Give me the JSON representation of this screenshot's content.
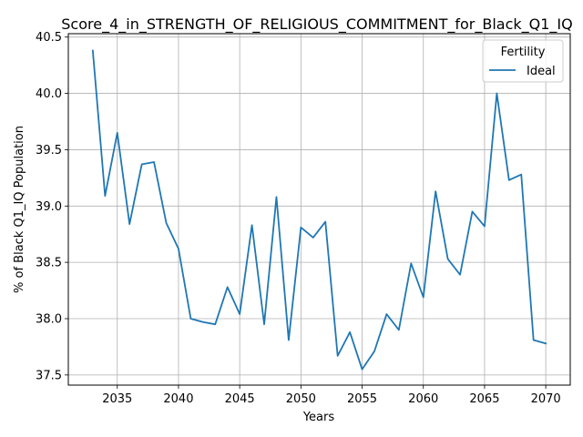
{
  "chart_data": {
    "type": "line",
    "title": "Score_4_in_STRENGTH_OF_RELIGIOUS_COMMITMENT_for_Black_Q1_IQ",
    "xlabel": "Years",
    "ylabel": "% of Black Q1_IQ Population",
    "xlim": [
      2031,
      2072
    ],
    "ylim": [
      37.41,
      40.53
    ],
    "xticks": [
      2035,
      2040,
      2045,
      2050,
      2055,
      2060,
      2065,
      2070
    ],
    "yticks": [
      37.5,
      38.0,
      38.5,
      39.0,
      39.5,
      40.0,
      40.5
    ],
    "xtick_labels": [
      "2035",
      "2040",
      "2045",
      "2050",
      "2055",
      "2060",
      "2065",
      "2070"
    ],
    "ytick_labels": [
      "37.5",
      "38.0",
      "38.5",
      "39.0",
      "39.5",
      "40.0",
      "40.5"
    ],
    "grid": true,
    "legend": {
      "title": "Fertility",
      "position": "upper right"
    },
    "series": [
      {
        "name": "Ideal",
        "color": "#1f77b4",
        "x": [
          2033,
          2034,
          2035,
          2036,
          2037,
          2038,
          2039,
          2040,
          2041,
          2042,
          2043,
          2044,
          2045,
          2046,
          2047,
          2048,
          2049,
          2050,
          2051,
          2052,
          2053,
          2054,
          2055,
          2056,
          2057,
          2058,
          2059,
          2060,
          2061,
          2062,
          2063,
          2064,
          2065,
          2066,
          2067,
          2068,
          2069,
          2070
        ],
        "y": [
          40.38,
          39.09,
          39.65,
          38.84,
          39.37,
          39.39,
          38.85,
          38.62,
          38.0,
          37.97,
          37.95,
          38.28,
          38.04,
          38.83,
          37.95,
          39.08,
          37.81,
          38.81,
          38.72,
          38.86,
          37.67,
          37.88,
          37.55,
          37.71,
          38.04,
          37.9,
          38.49,
          38.19,
          39.13,
          38.53,
          38.39,
          38.95,
          38.82,
          40.0,
          39.23,
          39.28,
          37.81,
          37.78
        ]
      }
    ]
  }
}
